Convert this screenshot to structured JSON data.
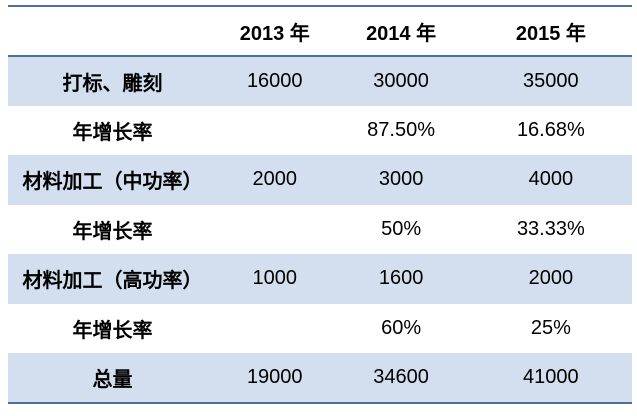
{
  "chart_data": {
    "type": "table",
    "columns": [
      "",
      "2013 年",
      "2014 年",
      "2015 年"
    ],
    "rows": [
      [
        "打标、雕刻",
        "16000",
        "30000",
        "35000"
      ],
      [
        "年增长率",
        "",
        "87.50%",
        "16.68%"
      ],
      [
        "材料加工（中功率）",
        "2000",
        "3000",
        "4000"
      ],
      [
        "年增长率",
        "",
        "50%",
        "33.33%"
      ],
      [
        "材料加工（高功率）",
        "1000",
        "1600",
        "2000"
      ],
      [
        "年增长率",
        "",
        "60%",
        "25%"
      ],
      [
        "总量",
        "19000",
        "34600",
        "41000"
      ]
    ],
    "layout": {
      "banded_rows": "odd rows (1st, 3rd, 5th, 7th) shaded",
      "grid": "horizontal accent borders above header, below header, below last row only"
    },
    "colors": {
      "band": "#D3DFEE",
      "border": "#4C6F9C",
      "text": "#000000",
      "background": "#FFFFFF"
    }
  }
}
